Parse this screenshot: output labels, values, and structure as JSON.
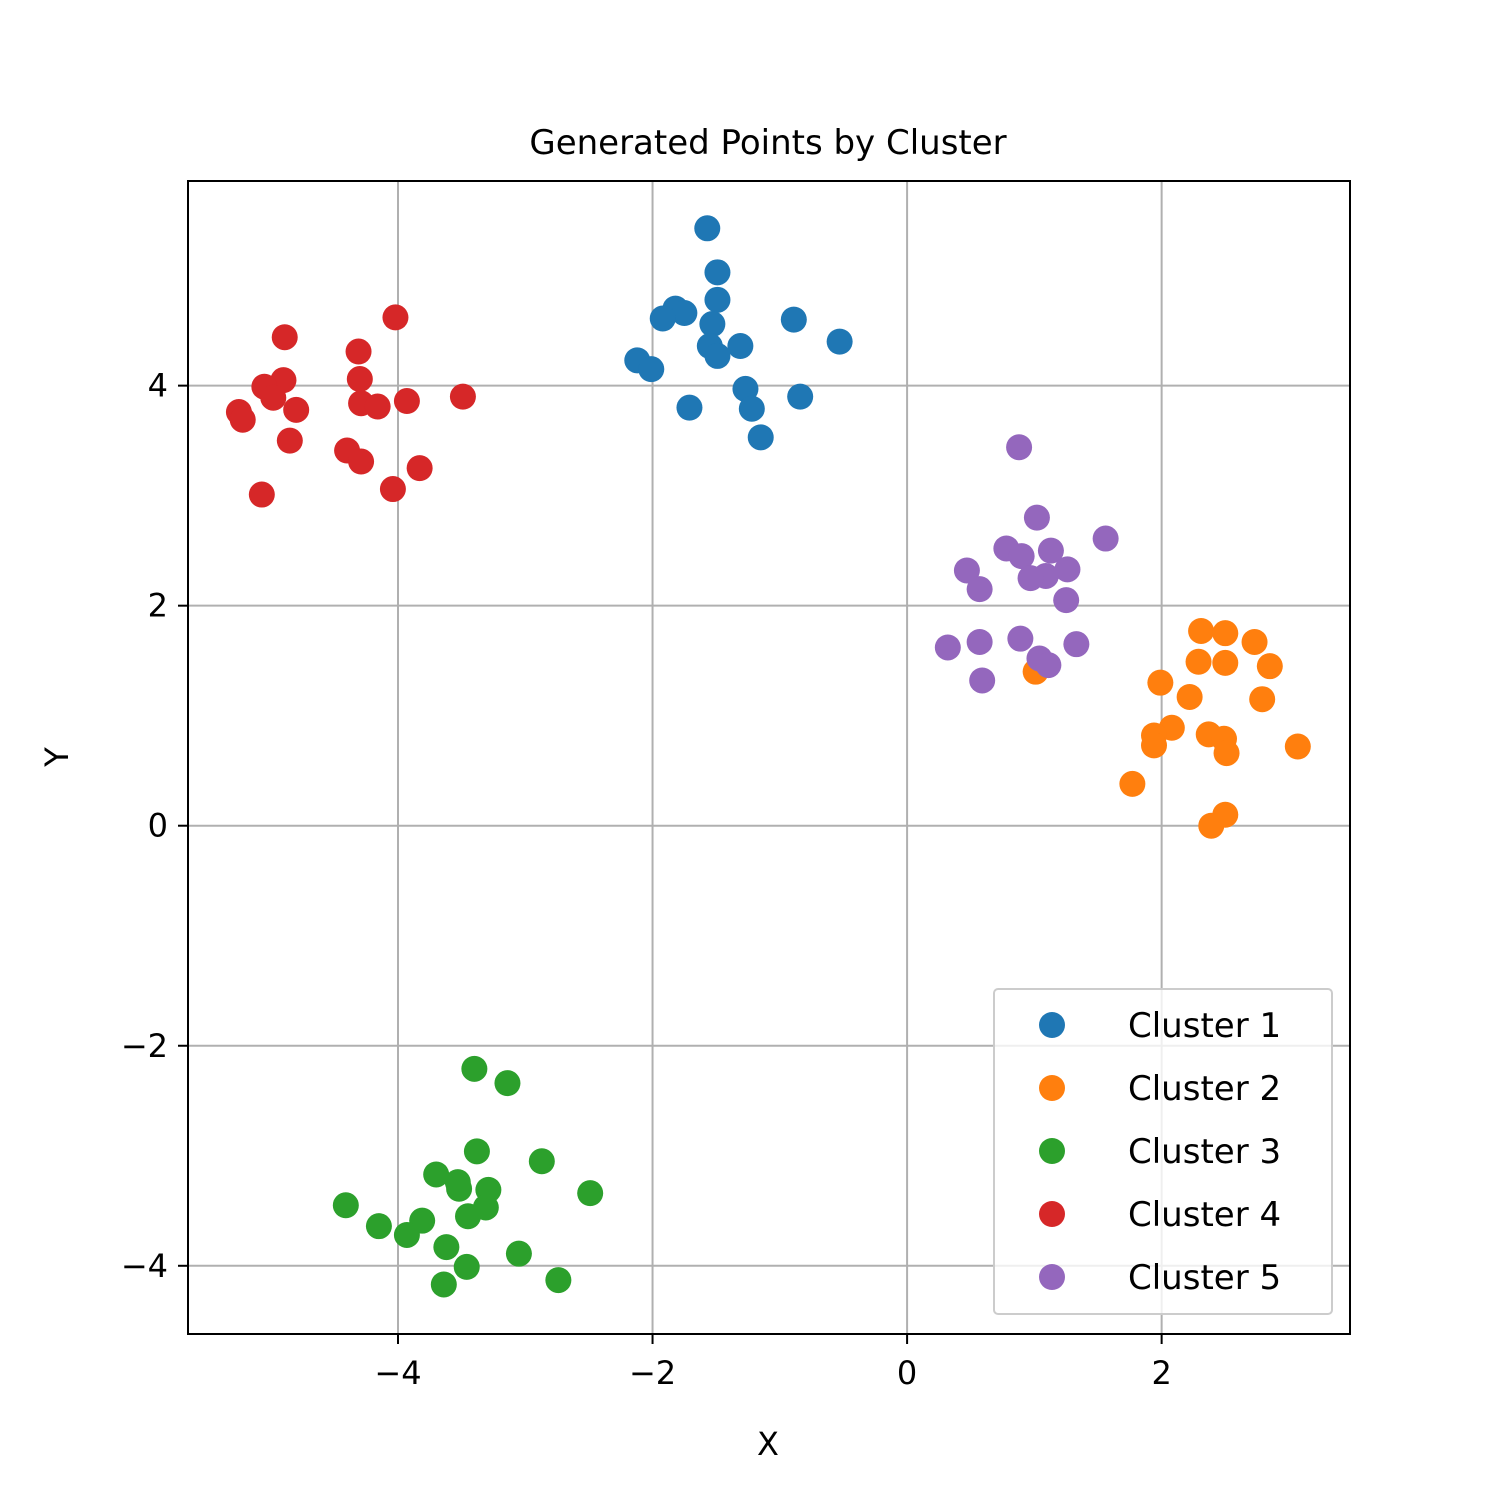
{
  "chart_data": {
    "type": "scatter",
    "title": "Generated Points by Cluster",
    "xlabel": "X",
    "ylabel": "Y",
    "xlim": [
      -5.65,
      3.48
    ],
    "ylim": [
      -4.62,
      5.86
    ],
    "xticks": [
      -4,
      -2,
      0,
      2
    ],
    "yticks": [
      -4,
      -2,
      0,
      2,
      4
    ],
    "xtick_labels": [
      "−4",
      "−2",
      "0",
      "2"
    ],
    "ytick_labels": [
      "−4",
      "−2",
      "0",
      "2",
      "4"
    ],
    "grid": true,
    "legend_position": "lower-right",
    "series": [
      {
        "name": "Cluster 1",
        "color": "#1f77b4",
        "points": [
          [
            -1.57,
            5.43
          ],
          [
            -1.49,
            5.03
          ],
          [
            -1.49,
            4.78
          ],
          [
            -1.82,
            4.7
          ],
          [
            -1.75,
            4.66
          ],
          [
            -1.92,
            4.61
          ],
          [
            -1.53,
            4.56
          ],
          [
            -0.89,
            4.6
          ],
          [
            -0.53,
            4.4
          ],
          [
            -1.55,
            4.36
          ],
          [
            -1.31,
            4.36
          ],
          [
            -1.49,
            4.27
          ],
          [
            -2.12,
            4.23
          ],
          [
            -2.01,
            4.15
          ],
          [
            -1.27,
            3.97
          ],
          [
            -0.84,
            3.9
          ],
          [
            -1.71,
            3.8
          ],
          [
            -1.22,
            3.79
          ],
          [
            -1.15,
            3.53
          ]
        ]
      },
      {
        "name": "Cluster 2",
        "color": "#ff7f0e",
        "points": [
          [
            2.31,
            1.77
          ],
          [
            2.5,
            1.75
          ],
          [
            2.73,
            1.67
          ],
          [
            2.29,
            1.49
          ],
          [
            2.5,
            1.48
          ],
          [
            2.85,
            1.45
          ],
          [
            1.01,
            1.4
          ],
          [
            1.99,
            1.3
          ],
          [
            2.22,
            1.17
          ],
          [
            2.79,
            1.15
          ],
          [
            2.08,
            0.89
          ],
          [
            1.94,
            0.82
          ],
          [
            2.37,
            0.83
          ],
          [
            2.49,
            0.79
          ],
          [
            1.94,
            0.73
          ],
          [
            3.07,
            0.72
          ],
          [
            2.51,
            0.66
          ],
          [
            1.77,
            0.38
          ],
          [
            2.5,
            0.1
          ],
          [
            2.39,
            0.0
          ]
        ]
      },
      {
        "name": "Cluster 3",
        "color": "#2ca02c",
        "points": [
          [
            -3.4,
            -2.21
          ],
          [
            -3.14,
            -2.34
          ],
          [
            -3.38,
            -2.96
          ],
          [
            -2.87,
            -3.05
          ],
          [
            -3.7,
            -3.17
          ],
          [
            -3.53,
            -3.24
          ],
          [
            -3.52,
            -3.3
          ],
          [
            -3.29,
            -3.31
          ],
          [
            -2.49,
            -3.34
          ],
          [
            -4.41,
            -3.45
          ],
          [
            -3.31,
            -3.47
          ],
          [
            -3.45,
            -3.55
          ],
          [
            -3.81,
            -3.59
          ],
          [
            -4.15,
            -3.64
          ],
          [
            -3.93,
            -3.72
          ],
          [
            -3.62,
            -3.83
          ],
          [
            -3.05,
            -3.89
          ],
          [
            -3.46,
            -4.01
          ],
          [
            -2.74,
            -4.13
          ],
          [
            -3.64,
            -4.17
          ]
        ]
      },
      {
        "name": "Cluster 4",
        "color": "#d62728",
        "points": [
          [
            -4.02,
            4.62
          ],
          [
            -4.89,
            4.44
          ],
          [
            -4.31,
            4.31
          ],
          [
            -4.9,
            4.05
          ],
          [
            -4.3,
            4.06
          ],
          [
            -5.05,
            3.99
          ],
          [
            -4.98,
            3.89
          ],
          [
            -3.93,
            3.86
          ],
          [
            -3.49,
            3.9
          ],
          [
            -4.29,
            3.84
          ],
          [
            -4.16,
            3.81
          ],
          [
            -4.8,
            3.78
          ],
          [
            -5.25,
            3.76
          ],
          [
            -5.22,
            3.69
          ],
          [
            -4.85,
            3.5
          ],
          [
            -4.4,
            3.41
          ],
          [
            -4.29,
            3.31
          ],
          [
            -3.83,
            3.25
          ],
          [
            -4.04,
            3.06
          ],
          [
            -5.07,
            3.01
          ]
        ]
      },
      {
        "name": "Cluster 5",
        "color": "#9467bd",
        "points": [
          [
            0.88,
            3.44
          ],
          [
            1.02,
            2.8
          ],
          [
            1.56,
            2.61
          ],
          [
            0.78,
            2.52
          ],
          [
            1.13,
            2.5
          ],
          [
            0.9,
            2.45
          ],
          [
            0.47,
            2.32
          ],
          [
            1.26,
            2.33
          ],
          [
            1.09,
            2.27
          ],
          [
            0.97,
            2.25
          ],
          [
            0.57,
            2.15
          ],
          [
            1.25,
            2.05
          ],
          [
            0.89,
            1.7
          ],
          [
            0.57,
            1.67
          ],
          [
            1.33,
            1.65
          ],
          [
            0.32,
            1.62
          ],
          [
            1.04,
            1.52
          ],
          [
            1.11,
            1.46
          ],
          [
            0.59,
            1.32
          ]
        ]
      }
    ]
  }
}
